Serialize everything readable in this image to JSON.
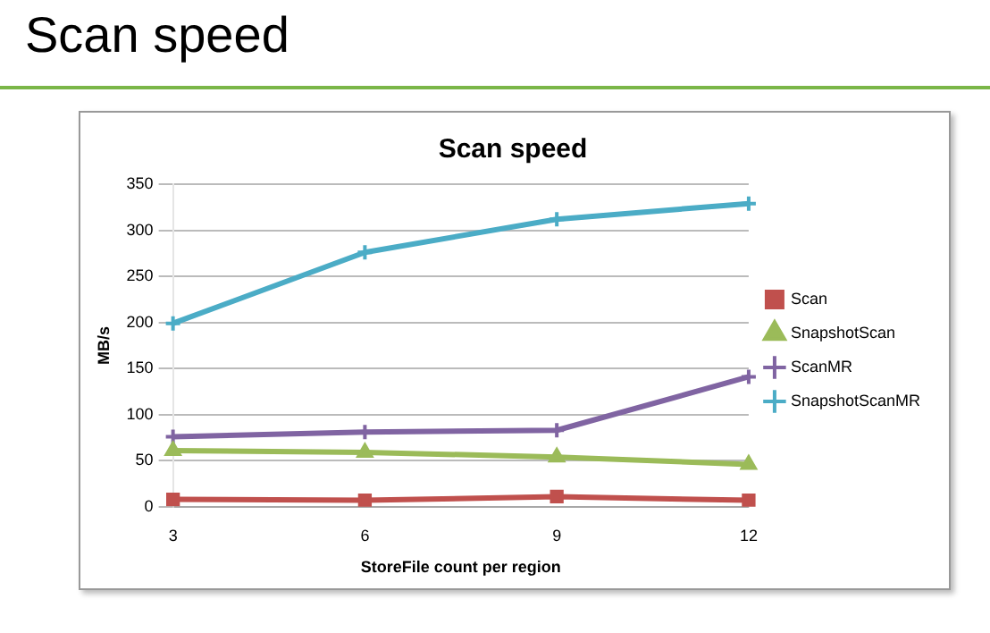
{
  "chart_data": {
    "type": "line",
    "title": "Scan speed",
    "subtitle": "Scan speed",
    "xlabel": "StoreFile count per region",
    "ylabel": "MB/s",
    "categories": [
      "3",
      "6",
      "9",
      "12"
    ],
    "series": [
      {
        "name": "Scan",
        "color": "#c0504d",
        "marker": "square",
        "values": [
          8,
          7,
          11,
          7
        ]
      },
      {
        "name": "SnapshotScan",
        "color": "#9bbb59",
        "marker": "triangle",
        "values": [
          61,
          59,
          54,
          46
        ]
      },
      {
        "name": "ScanMR",
        "color": "#8064a2",
        "marker": "cross",
        "values": [
          76,
          81,
          83,
          141
        ]
      },
      {
        "name": "SnapshotScanMR",
        "color": "#4bacc6",
        "marker": "cross",
        "values": [
          199,
          276,
          312,
          329
        ]
      }
    ],
    "ylim": [
      0,
      350
    ],
    "yticks": [
      0,
      50,
      100,
      150,
      200,
      250,
      300,
      350
    ],
    "grid": "y",
    "legend": "right",
    "line_style": "solid"
  }
}
